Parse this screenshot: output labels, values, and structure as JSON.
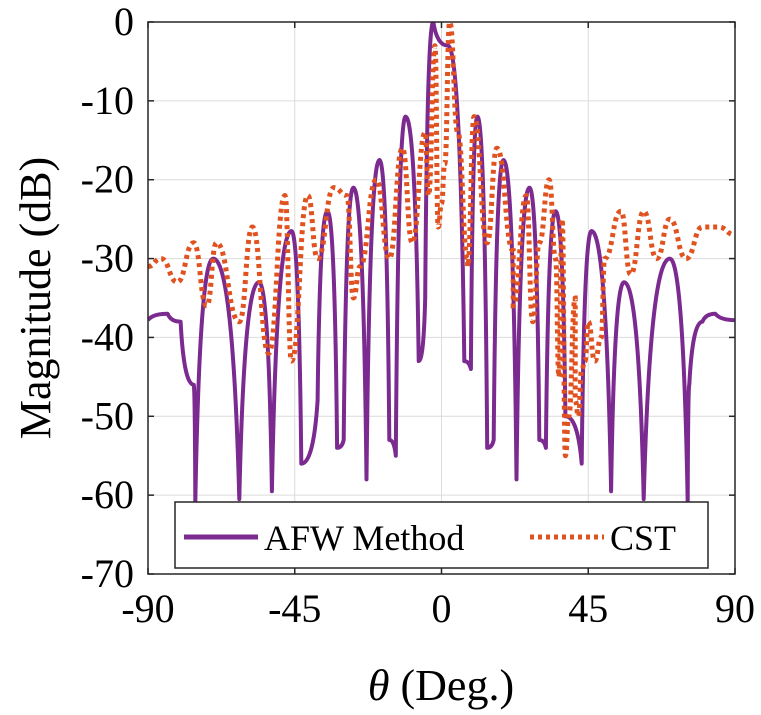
{
  "chart_data": {
    "type": "line",
    "xlabel_symbol": "θ",
    "xlabel_text": " (Deg.)",
    "ylabel": "Magnitude (dB)",
    "xlim": [
      -90,
      90
    ],
    "ylim": [
      -70,
      0
    ],
    "xticks": [
      -90,
      -45,
      0,
      45,
      90
    ],
    "yticks": [
      0,
      -10,
      -20,
      -30,
      -40,
      -50,
      -60,
      -70
    ],
    "grid": true,
    "legend_position": "bottom-center",
    "colors": {
      "afw": "#7B2A8F",
      "cst": "#E0521F"
    },
    "series": [
      {
        "name": "AFW Method",
        "style": "solid",
        "mainlobe_peak_deg": -2.5,
        "peaks": [
          [
            -90,
            -37.8
          ],
          [
            -84,
            -37
          ],
          [
            -80,
            -38
          ],
          [
            -76,
            -46
          ],
          [
            -70,
            -30
          ],
          [
            -56,
            -33
          ],
          [
            -46,
            -26.5
          ],
          [
            -35,
            -24
          ],
          [
            -27,
            -21
          ],
          [
            -19,
            -17.5
          ],
          [
            -11,
            -12
          ],
          [
            -2.5,
            0
          ],
          [
            2,
            -3
          ],
          [
            11,
            -12
          ],
          [
            19,
            -17.5
          ],
          [
            27,
            -21
          ],
          [
            35,
            -24
          ],
          [
            46,
            -26.5
          ],
          [
            56,
            -33
          ],
          [
            70,
            -30
          ],
          [
            76,
            -46
          ],
          [
            80,
            -38
          ],
          [
            84,
            -37
          ],
          [
            90,
            -37.8
          ]
        ],
        "nulls": [
          [
            -75.5,
            -61
          ],
          [
            -62,
            -60.5
          ],
          [
            -52,
            -59.5
          ],
          [
            -43,
            -56
          ],
          [
            -38,
            -48
          ],
          [
            -32,
            -54
          ],
          [
            -30,
            -53
          ],
          [
            -23,
            -58
          ],
          [
            -16,
            -53
          ],
          [
            -14,
            -55
          ],
          [
            -7,
            -43
          ],
          [
            -5,
            -35
          ],
          [
            7,
            -43
          ],
          [
            9,
            -44
          ],
          [
            14,
            -54
          ],
          [
            16,
            -53
          ],
          [
            23,
            -58
          ],
          [
            30,
            -53
          ],
          [
            32,
            -54
          ],
          [
            38,
            -50
          ],
          [
            43,
            -56
          ],
          [
            52,
            -59.5
          ],
          [
            62,
            -60.5
          ],
          [
            75.5,
            -61
          ]
        ]
      },
      {
        "name": "CST",
        "style": "dotted",
        "mainlobe_peak_deg": 2.5,
        "points": [
          [
            -90,
            -31
          ],
          [
            -86,
            -30
          ],
          [
            -81,
            -33
          ],
          [
            -76,
            -28
          ],
          [
            -72,
            -36
          ],
          [
            -69,
            -28
          ],
          [
            -62,
            -38
          ],
          [
            -58,
            -26
          ],
          [
            -53,
            -42
          ],
          [
            -48,
            -22
          ],
          [
            -41,
            -22
          ],
          [
            -38,
            -30
          ],
          [
            -33,
            -21
          ],
          [
            -29,
            -22
          ],
          [
            -25,
            -31
          ],
          [
            -20,
            -20
          ],
          [
            -16,
            -30
          ],
          [
            -12,
            -16
          ],
          [
            -9,
            -28
          ],
          [
            -5,
            -14
          ],
          [
            -2,
            -3
          ],
          [
            0,
            -23
          ],
          [
            1,
            -18
          ],
          [
            2.5,
            0
          ],
          [
            5,
            -14
          ],
          [
            8,
            -30
          ],
          [
            10,
            -12
          ],
          [
            14,
            -28
          ],
          [
            17,
            -16
          ],
          [
            22,
            -29
          ],
          [
            26,
            -22
          ],
          [
            30,
            -28
          ],
          [
            33,
            -20
          ],
          [
            35,
            -30
          ],
          [
            37,
            -25
          ],
          [
            39,
            -50
          ],
          [
            41,
            -35
          ],
          [
            43,
            -44
          ],
          [
            45,
            -38
          ],
          [
            47,
            -43
          ],
          [
            50,
            -30
          ],
          [
            55,
            -24
          ],
          [
            58,
            -32
          ],
          [
            62,
            -24
          ],
          [
            66,
            -30
          ],
          [
            70,
            -25
          ],
          [
            75,
            -30
          ],
          [
            80,
            -26
          ],
          [
            85,
            -26
          ],
          [
            90,
            -27
          ]
        ],
        "deep_dips": [
          [
            -46,
            -43
          ],
          [
            -27,
            -35
          ],
          [
            -4,
            -22
          ],
          [
            -1,
            -26
          ],
          [
            8,
            -31
          ],
          [
            22,
            -36
          ],
          [
            28,
            -38
          ],
          [
            36,
            -45
          ],
          [
            38,
            -55
          ],
          [
            39,
            -50
          ],
          [
            41,
            -48
          ],
          [
            42,
            -50
          ],
          [
            44,
            -43
          ],
          [
            47,
            -43
          ],
          [
            49,
            -40
          ]
        ]
      }
    ]
  }
}
